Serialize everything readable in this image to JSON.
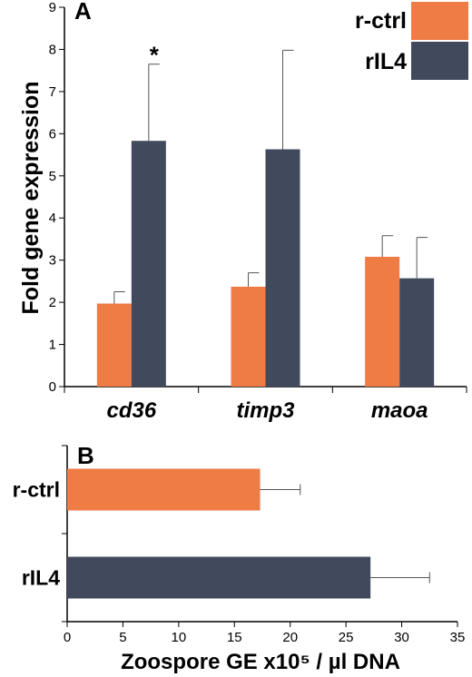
{
  "chart_data": [
    {
      "type": "bar",
      "panel_label": "A",
      "orientation": "vertical",
      "categories": [
        "cd36",
        "timp3",
        "maoa"
      ],
      "series": [
        {
          "name": "r-ctrl",
          "color": "#ef7b45",
          "values": [
            1.97,
            2.37,
            3.08
          ],
          "errors": [
            0.28,
            0.33,
            0.5
          ]
        },
        {
          "name": "rIL4",
          "color": "#414a5c",
          "values": [
            5.83,
            5.63,
            2.57
          ],
          "errors": [
            1.82,
            2.35,
            0.97
          ]
        }
      ],
      "ylabel": "Fold gene expression",
      "xlabel": "",
      "ylim": [
        0,
        9
      ],
      "yticks": [
        "0",
        "1",
        "2",
        "3",
        "4",
        "5",
        "6",
        "7",
        "8",
        "9"
      ],
      "annotations": [
        {
          "category": "cd36",
          "series": "rIL4",
          "text": "*"
        }
      ],
      "legend": "top-right",
      "grid": false
    },
    {
      "type": "bar",
      "panel_label": "B",
      "orientation": "horizontal",
      "categories": [
        "r-ctrl",
        "rIL4"
      ],
      "values": [
        17.3,
        27.2
      ],
      "errors": [
        3.6,
        5.3
      ],
      "colors": [
        "#ef7b45",
        "#414a5c"
      ],
      "xlabel": "Zoospore GE x10⁵ / µl DNA",
      "ylabel": "",
      "xlim": [
        0,
        35
      ],
      "xticks": [
        "0",
        "5",
        "10",
        "15",
        "20",
        "25",
        "30",
        "35"
      ],
      "grid": false
    }
  ]
}
